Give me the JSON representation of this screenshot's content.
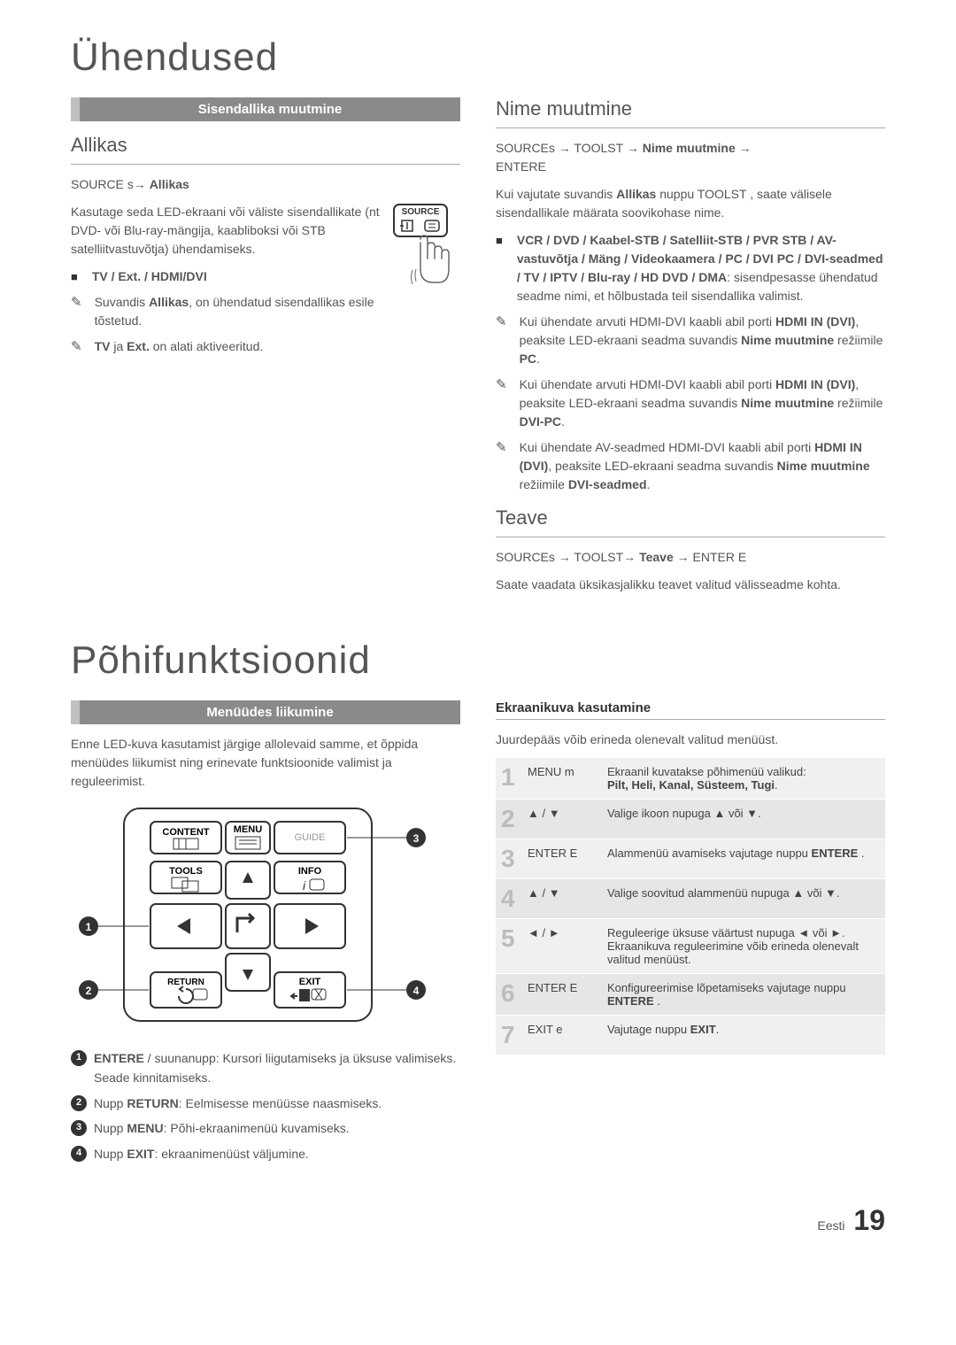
{
  "page": {
    "title1": "Ühendused",
    "title2": "Põhifunktsioonid",
    "footer_lang": "Eesti",
    "footer_page": "19"
  },
  "left_top": {
    "section_header": "Sisendallika muutmine",
    "subheading": "Allikas",
    "path": "SOURCE s→ Allikas",
    "body": "Kasutage seda LED-ekraani või väliste sisendallikate (nt DVD- või Blu-ray-mängija, kaabliboksi või STB satelliitvastuvõtja) ühendamiseks.",
    "bullet_bold": "TV / Ext. / HDMI/DVI",
    "note1_pre": "Suvandis ",
    "note1_bold": "Allikas",
    "note1_post": ", on ühendatud sisendallikas esile tõstetud.",
    "note2_pre": "",
    "note2_bold1": "TV",
    "note2_mid": " ja ",
    "note2_bold2": "Ext.",
    "note2_post": " on alati aktiveeritud.",
    "source_label": "SOURCE"
  },
  "right_top": {
    "subheading1": "Nime muutmine",
    "path1_a": "SOURCEs",
    "path1_b": " → TOOLST ",
    "path1_c": " → Nime muutmine → ",
    "path1_d": "ENTERE",
    "body1_pre": "Kui vajutate suvandis ",
    "body1_bold": "Allikas",
    "body1_mid": " nuppu  TOOLST    , saate välisele sisendallikale määrata soovikohase nime.",
    "bullet_bold": "VCR / DVD / Kaabel-STB / Satelliit-STB / PVR STB / AV-vastuvõtja / Mäng / Videokaamera / PC / DVI PC / DVI-seadmed / TV / IPTV / Blu-ray / HD DVD / DMA",
    "bullet_tail": ": sisendpesasse ühendatud seadme nimi, et hõlbustada teil sisendallika valimist.",
    "note1": "Kui ühendate arvuti HDMI-DVI kaabli abil porti ",
    "note1_b1": "HDMI IN (DVI)",
    "note1_m": ", peaksite LED-ekraani seadma suvandis ",
    "note1_b2": "Nime muutmine",
    "note1_m2": " režiimile ",
    "note1_b3": "PC",
    "note1_end": ".",
    "note2": "Kui ühendate arvuti HDMI-DVI kaabli abil porti ",
    "note2_b1": "HDMI IN (DVI)",
    "note2_m": ", peaksite LED-ekraani seadma suvandis ",
    "note2_b2": "Nime muutmine",
    "note2_m2": " režiimile ",
    "note2_b3": "DVI-PC",
    "note2_end": ".",
    "note3": "Kui ühendate AV-seadmed HDMI-DVI kaabli abil porti ",
    "note3_b1": "HDMI IN (DVI)",
    "note3_m": ", peaksite LED-ekraani seadma suvandis ",
    "note3_b2": "Nime muutmine",
    "note3_m2": " režiimile ",
    "note3_b3": "DVI-seadmed",
    "note3_end": ".",
    "subheading2": "Teave",
    "path2": "SOURCEs → TOOLST→ Teave → ENTER      E",
    "body2": "Saate vaadata üksikasjalikku teavet valitud välisseadme kohta."
  },
  "left_bottom": {
    "section_header": "Menüüdes liikumine",
    "intro": "Enne LED-kuva kasutamist järgige allolevaid samme, et õppida menüüdes liikumist ning erinevate funktsioonide valimist ja reguleerimist.",
    "remote": {
      "content": "CONTENT",
      "menu": "MENU",
      "guide": "GUIDE",
      "tools": "TOOLS",
      "info": "INFO",
      "return": "RETURN",
      "exit": "EXIT"
    },
    "legend": [
      {
        "n": "1",
        "bold": "ENTERE",
        "text": " / suunanupp: Kursori liigutamiseks ja üksuse valimiseks. Seade kinnitamiseks."
      },
      {
        "n": "2",
        "pre": "Nupp ",
        "bold": "RETURN",
        "text": ": Eelmisesse menüüsse naasmiseks."
      },
      {
        "n": "3",
        "pre": "Nupp ",
        "bold": "MENU",
        "text": ": Põhi-ekraanimenüü kuvamiseks."
      },
      {
        "n": "4",
        "pre": "Nupp ",
        "bold": "EXIT",
        "text": ": ekraanimenüüst väljumine."
      }
    ]
  },
  "right_bottom": {
    "heading": "Ekraanikuva kasutamine",
    "intro": "Juurdepääs võib erineda olenevalt valitud menüüst.",
    "rows": [
      {
        "n": "1",
        "key": "MENU m",
        "text_pre": "Ekraanil kuvatakse põhimenüü valikud:",
        "text_bold": "Pilt, Heli, Kanal, Süsteem, Tugi",
        "text_post": "."
      },
      {
        "n": "2",
        "key": "▲ / ▼",
        "text_pre": "Valige ikoon nupuga ▲ või ▼.",
        "text_bold": "",
        "text_post": ""
      },
      {
        "n": "3",
        "key": "ENTER E",
        "text_pre": "Alammenüü avamiseks vajutage nuppu ",
        "text_bold": "ENTERE",
        "text_post": "   ."
      },
      {
        "n": "4",
        "key": "▲ / ▼",
        "text_pre": "Valige soovitud alammenüü nupuga ▲ või ▼.",
        "text_bold": "",
        "text_post": ""
      },
      {
        "n": "5",
        "key": "◄ / ►",
        "text_pre": "Reguleerige üksuse väärtust nupuga ◄ või ►. Ekraanikuva reguleerimine võib erineda olenevalt valitud menüüst.",
        "text_bold": "",
        "text_post": ""
      },
      {
        "n": "6",
        "key": "ENTER E",
        "text_pre": "Konfigureerimise lõpetamiseks vajutage nuppu ",
        "text_bold": "ENTERE",
        "text_post": "   ."
      },
      {
        "n": "7",
        "key": "EXIT e",
        "text_pre": "Vajutage nuppu ",
        "text_bold": "EXIT",
        "text_post": "."
      }
    ]
  }
}
